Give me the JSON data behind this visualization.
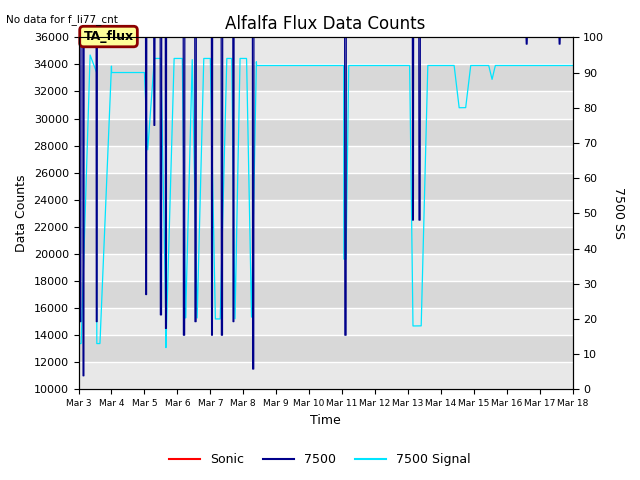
{
  "title": "Alfalfa Flux Data Counts",
  "top_left_text": "No data for f_li77_cnt",
  "xlabel": "Time",
  "ylabel_left": "Data Counts",
  "ylabel_right": "7500 SS",
  "ylim_left": [
    10000,
    36000
  ],
  "ylim_right": [
    0,
    100
  ],
  "annotation_box": "TA_flux",
  "xtick_labels": [
    "Mar 3",
    "Mar 4",
    "Mar 5",
    "Mar 6",
    "Mar 7",
    "Mar 8",
    "Mar 9",
    "Mar 10",
    "Mar 11",
    "Mar 12",
    "Mar 13",
    "Mar 14",
    "Mar 15",
    "Mar 16",
    "Mar 17",
    "Mar 18"
  ],
  "bg_color": "#ffffff",
  "plot_bg_color": "#e8e8e8",
  "colors": {
    "sonic": "#ff0000",
    "7500": "#00008b",
    "7500_signal": "#00e5ff"
  },
  "legend_entries": [
    "Sonic",
    "7500",
    "7500 Signal"
  ],
  "title_fontsize": 12,
  "label_fontsize": 9,
  "tick_fontsize": 8
}
